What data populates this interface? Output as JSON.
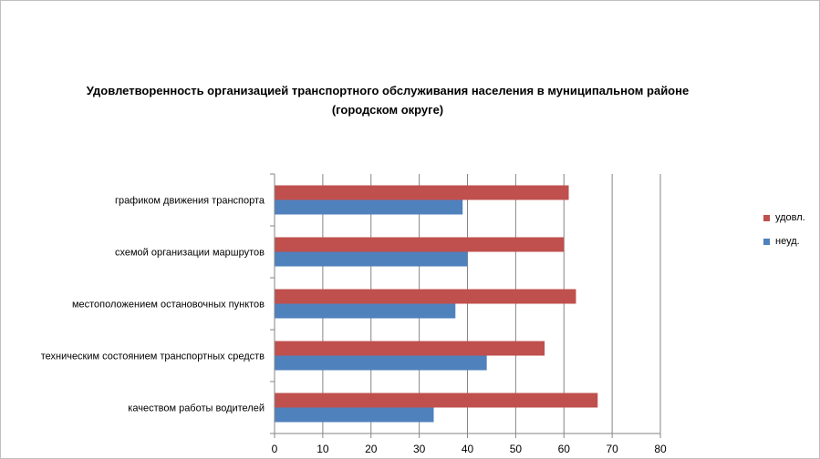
{
  "chart_data": {
    "type": "bar",
    "orientation": "horizontal",
    "title": "Удовлетворенность организацией транспортного обслуживания населения в муниципальном районе",
    "subtitle": "(городском округе)",
    "categories": [
      "графиком движения  транспорта",
      "схемой организации маршрутов",
      "местоположением  остановочных пунктов",
      "техническим  состоянием транспортных средств",
      "качеством  работы водителей"
    ],
    "series": [
      {
        "name": "удовл.",
        "color": "#C0504D",
        "values": [
          61,
          60,
          62.5,
          56,
          67
        ]
      },
      {
        "name": "неуд.",
        "color": "#4F81BD",
        "values": [
          39,
          40,
          37.5,
          44,
          33
        ]
      }
    ],
    "xlim": [
      0,
      80
    ],
    "xticks": [
      "0",
      "10",
      "20",
      "30",
      "40",
      "50",
      "60",
      "70",
      "80"
    ],
    "xlabel": "",
    "ylabel": "",
    "grid": true,
    "legend_position": "right"
  }
}
